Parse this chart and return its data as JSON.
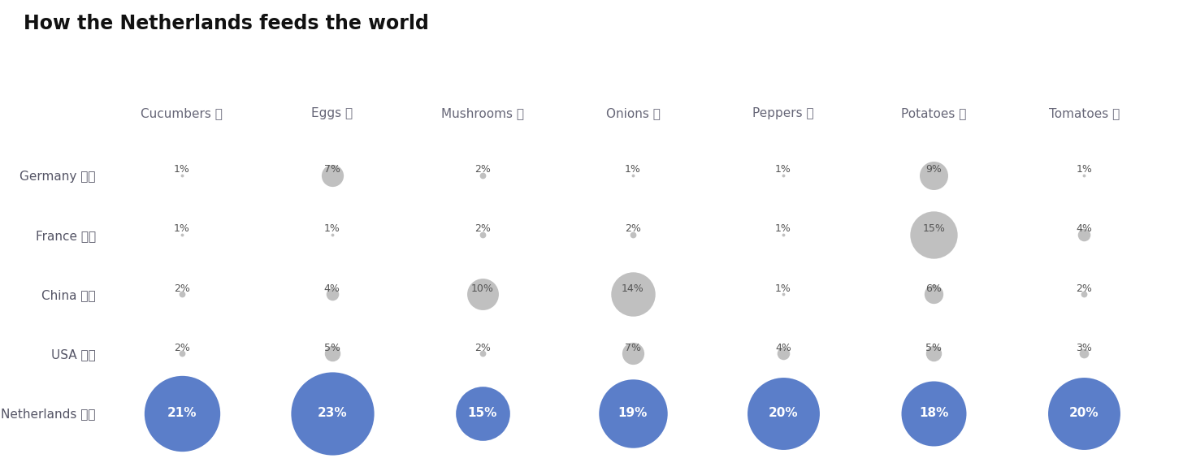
{
  "title": "How the Netherlands feeds the world",
  "foods": [
    "Cucumbers 🥒",
    "Eggs 🥚",
    "Mushrooms 🍄",
    "Onions 🧅",
    "Peppers 🌶️",
    "Potatoes 🥔",
    "Tomatoes 🍅"
  ],
  "country_labels": [
    "Germany 🇩🇦",
    "France 🇫🇷",
    "China 🇨🇳",
    "USA 🇺🇸",
    "Netherlands 🇳🇱"
  ],
  "country_keys": [
    "Germany",
    "France",
    "China",
    "USA",
    "Netherlands"
  ],
  "data": {
    "Germany": [
      1,
      7,
      2,
      1,
      1,
      9,
      1
    ],
    "France": [
      1,
      1,
      2,
      2,
      1,
      15,
      4
    ],
    "China": [
      2,
      4,
      10,
      14,
      1,
      6,
      2
    ],
    "USA": [
      2,
      5,
      2,
      7,
      4,
      5,
      3
    ],
    "Netherlands": [
      21,
      23,
      15,
      19,
      20,
      18,
      20
    ]
  },
  "nl_color": "#5b7ec9",
  "gray_color": "#c0c0c0",
  "bg_color": "#ffffff",
  "title_fontsize": 17,
  "food_label_fontsize": 11,
  "country_label_fontsize": 11,
  "pct_fontsize_nl": 11,
  "pct_fontsize_other": 9,
  "dot_base": 2.8,
  "nl_dot_base": 3.2
}
